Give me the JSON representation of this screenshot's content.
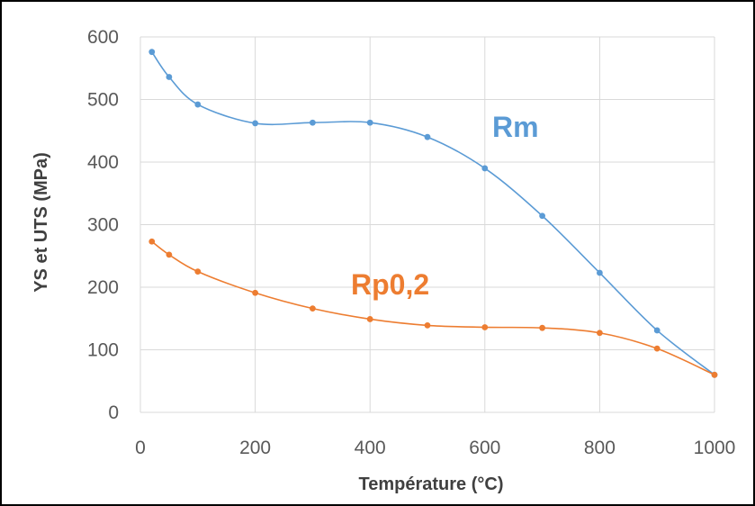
{
  "chart_data": {
    "type": "line",
    "title": "",
    "xlabel": "Température (°C)",
    "ylabel": "YS et UTS (MPa)",
    "xlim": [
      0,
      1000
    ],
    "ylim": [
      0,
      600
    ],
    "xticks": [
      "0",
      "200",
      "400",
      "600",
      "800",
      "1000"
    ],
    "yticks": [
      "0",
      "100",
      "200",
      "300",
      "400",
      "500",
      "600"
    ],
    "grid": true,
    "legend": "none",
    "series": [
      {
        "name": "Rm",
        "color": "#5B9BD5",
        "x": [
          20,
          50,
          100,
          200,
          300,
          400,
          500,
          600,
          700,
          800,
          900,
          1000
        ],
        "y": [
          576,
          536,
          492,
          462,
          463,
          463,
          440,
          390,
          314,
          223,
          131,
          60
        ]
      },
      {
        "name": "Rp0,2",
        "color": "#ED7D31",
        "x": [
          20,
          50,
          100,
          200,
          300,
          400,
          500,
          600,
          700,
          800,
          900,
          1000
        ],
        "y": [
          273,
          252,
          225,
          191,
          166,
          149,
          139,
          136,
          135,
          127,
          102,
          60
        ]
      }
    ]
  }
}
